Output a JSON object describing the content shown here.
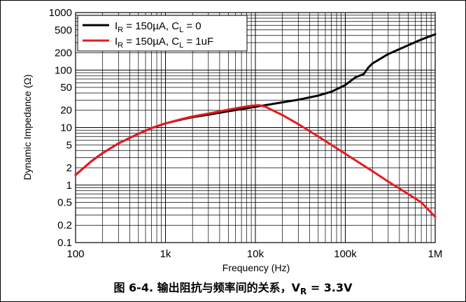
{
  "caption": {
    "text": "图 6-4. 输出阻抗与频率间的关系，",
    "vr_main": "V",
    "vr_sub": "R",
    "vr_value": " = 3.3V"
  },
  "chart_data": {
    "type": "line",
    "xlabel": "Frequency (Hz)",
    "ylabel": "Dynamic Impedance (Ω)",
    "xscale": "log",
    "yscale": "log",
    "xlim": [
      100,
      1000000
    ],
    "ylim": [
      0.1,
      1000
    ],
    "x_ticks": [
      "100",
      "1k",
      "10k",
      "100k",
      "1M"
    ],
    "y_ticks": [
      "0.1",
      "0.2",
      "0.5",
      "1",
      "2",
      "5",
      "10",
      "20",
      "50",
      "100",
      "200",
      "500",
      "1000"
    ],
    "grid": true,
    "legend_position": "top-left",
    "series": [
      {
        "name": "I_R = 150µA, C_L = 0",
        "legend": {
          "i": "I",
          "isub": "R",
          "mid": " = 150µA, C",
          "csub": "L",
          "end": " = 0"
        },
        "color": "#000000",
        "x": [
          100,
          150,
          200,
          300,
          500,
          700,
          1000,
          1500,
          2000,
          3000,
          5000,
          7000,
          10000,
          15000,
          20000,
          30000,
          50000,
          70000,
          100000,
          130000,
          160000,
          180000,
          200000,
          300000,
          500000,
          700000,
          1000000
        ],
        "y": [
          1.5,
          2.6,
          3.6,
          5.3,
          7.8,
          9.8,
          11.8,
          13.8,
          15.2,
          16.8,
          19.2,
          21,
          23,
          25.5,
          27.5,
          30.5,
          36,
          42,
          55,
          75,
          85,
          110,
          130,
          190,
          270,
          340,
          420
        ]
      },
      {
        "name": "I_R = 150µA, C_L = 1uF",
        "legend": {
          "i": "I",
          "isub": "R",
          "mid": " = 150µA, C",
          "csub": "L",
          "end": " = 1uF"
        },
        "color": "#e8191e",
        "x": [
          100,
          150,
          200,
          300,
          500,
          700,
          1000,
          1500,
          2000,
          3000,
          5000,
          7000,
          9000,
          11000,
          13000,
          15000,
          20000,
          30000,
          50000,
          70000,
          100000,
          200000,
          300000,
          500000,
          700000,
          1000000
        ],
        "y": [
          1.5,
          2.6,
          3.6,
          5.3,
          7.8,
          9.8,
          11.8,
          14,
          15.6,
          17.5,
          20.5,
          22.5,
          24,
          24.5,
          23,
          20.5,
          16.5,
          11.5,
          7,
          5,
          3.5,
          1.75,
          1.15,
          0.7,
          0.5,
          0.28
        ]
      }
    ]
  }
}
